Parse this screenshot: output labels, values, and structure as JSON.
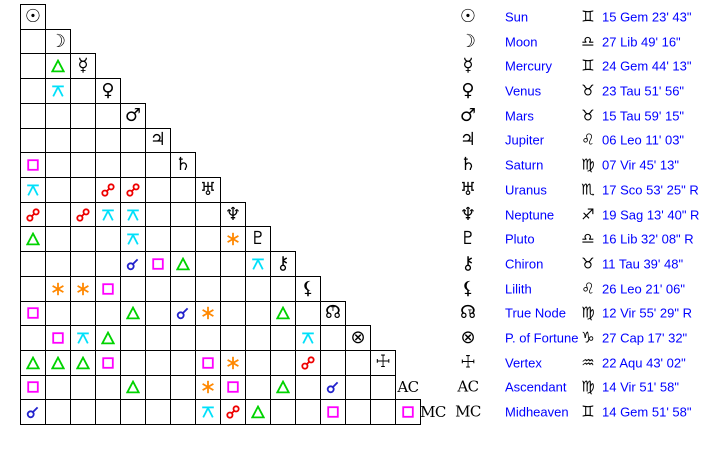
{
  "aspect_types": {
    "conjunction": {
      "color": "#2222cc"
    },
    "opposition": {
      "color": "#ee0000"
    },
    "square": {
      "color": "#ff00ff"
    },
    "trine": {
      "color": "#00d300"
    },
    "sextile": {
      "color": "#ff8800"
    },
    "quincunx": {
      "color": "#00e0fa"
    }
  },
  "colors": {
    "grid_line": "#000000",
    "glyph_text": "#000000",
    "table_text": "#0000ff",
    "background": "#ffffff"
  },
  "table": {
    "planets": [
      {
        "id": "sun",
        "glyph": "☉",
        "glyph_style": "symbol",
        "name": "Sun",
        "sign": "♊",
        "position": "15 Gem 23' 43\""
      },
      {
        "id": "moon",
        "glyph": "☽",
        "glyph_style": "symbol",
        "name": "Moon",
        "sign": "♎",
        "position": "27 Lib 49' 16\""
      },
      {
        "id": "mercury",
        "glyph": "☿",
        "glyph_style": "symbol",
        "name": "Mercury",
        "sign": "♊",
        "position": "24 Gem 44' 13\""
      },
      {
        "id": "venus",
        "glyph": "♀",
        "glyph_style": "symbol",
        "name": "Venus",
        "sign": "♉",
        "position": "23 Tau 51' 56\""
      },
      {
        "id": "mars",
        "glyph": "♂",
        "glyph_style": "symbol",
        "name": "Mars",
        "sign": "♉",
        "position": "15 Tau 59' 15\""
      },
      {
        "id": "jupiter",
        "glyph": "♃",
        "glyph_style": "symbol",
        "name": "Jupiter",
        "sign": "♌",
        "position": "06 Leo 11' 03\""
      },
      {
        "id": "saturn",
        "glyph": "♄",
        "glyph_style": "symbol",
        "name": "Saturn",
        "sign": "♍",
        "position": "07 Vir 45' 13\""
      },
      {
        "id": "uranus",
        "glyph": "♅",
        "glyph_style": "symbol",
        "name": "Uranus",
        "sign": "♏",
        "position": "17 Sco 53' 25\" R"
      },
      {
        "id": "neptune",
        "glyph": "♆",
        "glyph_style": "symbol",
        "name": "Neptune",
        "sign": "♐",
        "position": "19 Sag 13' 40\" R"
      },
      {
        "id": "pluto",
        "glyph": "♇",
        "glyph_style": "symbol",
        "name": "Pluto",
        "sign": "♎",
        "position": "16 Lib 32' 08\" R"
      },
      {
        "id": "chiron",
        "glyph": "⚷",
        "glyph_style": "symbol",
        "name": "Chiron",
        "sign": "♉",
        "position": "11 Tau 39' 48\""
      },
      {
        "id": "lilith",
        "glyph": "⚸",
        "glyph_style": "symbol",
        "name": "Lilith",
        "sign": "♌",
        "position": "26 Leo 21' 06\""
      },
      {
        "id": "true-node",
        "glyph": "☊",
        "glyph_style": "symbol",
        "name": "True Node",
        "sign": "♍",
        "position": "12 Vir 55' 29\" R",
        "badge": "T"
      },
      {
        "id": "fortune",
        "glyph": "⊗",
        "glyph_style": "symbol",
        "name": "P. of Fortune",
        "sign": "♑",
        "position": "27 Cap 17' 32\""
      },
      {
        "id": "vertex",
        "glyph": "☩",
        "glyph_style": "cross",
        "name": "Vertex",
        "sign": "♒",
        "position": "22 Aqu 43' 02\""
      },
      {
        "id": "ascendant",
        "glyph": "AC",
        "glyph_style": "text",
        "name": "Ascendant",
        "sign": "♍",
        "position": "14 Vir 51' 58\""
      },
      {
        "id": "midheaven",
        "glyph": "MC",
        "glyph_style": "text",
        "name": "Midheaven",
        "sign": "♊",
        "position": "14 Gem 51' 58\""
      }
    ]
  },
  "grid": {
    "rows": 17,
    "aspects": [
      {
        "row": 2,
        "col": 1,
        "type": "trine"
      },
      {
        "row": 3,
        "col": 1,
        "type": "quincunx"
      },
      {
        "row": 6,
        "col": 0,
        "type": "square"
      },
      {
        "row": 7,
        "col": 0,
        "type": "quincunx"
      },
      {
        "row": 7,
        "col": 3,
        "type": "opposition"
      },
      {
        "row": 7,
        "col": 4,
        "type": "opposition"
      },
      {
        "row": 8,
        "col": 0,
        "type": "opposition"
      },
      {
        "row": 8,
        "col": 2,
        "type": "opposition"
      },
      {
        "row": 8,
        "col": 3,
        "type": "quincunx"
      },
      {
        "row": 8,
        "col": 4,
        "type": "quincunx"
      },
      {
        "row": 9,
        "col": 0,
        "type": "trine"
      },
      {
        "row": 9,
        "col": 4,
        "type": "quincunx"
      },
      {
        "row": 9,
        "col": 8,
        "type": "sextile"
      },
      {
        "row": 10,
        "col": 4,
        "type": "conjunction"
      },
      {
        "row": 10,
        "col": 5,
        "type": "square"
      },
      {
        "row": 10,
        "col": 6,
        "type": "trine"
      },
      {
        "row": 10,
        "col": 9,
        "type": "quincunx"
      },
      {
        "row": 11,
        "col": 1,
        "type": "sextile"
      },
      {
        "row": 11,
        "col": 2,
        "type": "sextile"
      },
      {
        "row": 11,
        "col": 3,
        "type": "square"
      },
      {
        "row": 12,
        "col": 0,
        "type": "square"
      },
      {
        "row": 12,
        "col": 4,
        "type": "trine"
      },
      {
        "row": 12,
        "col": 6,
        "type": "conjunction"
      },
      {
        "row": 12,
        "col": 7,
        "type": "sextile"
      },
      {
        "row": 12,
        "col": 10,
        "type": "trine"
      },
      {
        "row": 13,
        "col": 1,
        "type": "square"
      },
      {
        "row": 13,
        "col": 2,
        "type": "quincunx"
      },
      {
        "row": 13,
        "col": 3,
        "type": "trine"
      },
      {
        "row": 13,
        "col": 11,
        "type": "quincunx"
      },
      {
        "row": 14,
        "col": 0,
        "type": "trine"
      },
      {
        "row": 14,
        "col": 1,
        "type": "trine"
      },
      {
        "row": 14,
        "col": 2,
        "type": "trine"
      },
      {
        "row": 14,
        "col": 3,
        "type": "square"
      },
      {
        "row": 14,
        "col": 7,
        "type": "square"
      },
      {
        "row": 14,
        "col": 8,
        "type": "sextile"
      },
      {
        "row": 14,
        "col": 11,
        "type": "opposition"
      },
      {
        "row": 15,
        "col": 0,
        "type": "square"
      },
      {
        "row": 15,
        "col": 4,
        "type": "trine"
      },
      {
        "row": 15,
        "col": 7,
        "type": "sextile"
      },
      {
        "row": 15,
        "col": 8,
        "type": "square"
      },
      {
        "row": 15,
        "col": 10,
        "type": "trine"
      },
      {
        "row": 15,
        "col": 12,
        "type": "conjunction"
      },
      {
        "row": 16,
        "col": 0,
        "type": "conjunction"
      },
      {
        "row": 16,
        "col": 7,
        "type": "quincunx"
      },
      {
        "row": 16,
        "col": 8,
        "type": "opposition"
      },
      {
        "row": 16,
        "col": 9,
        "type": "trine"
      },
      {
        "row": 16,
        "col": 12,
        "type": "square"
      },
      {
        "row": 16,
        "col": 15,
        "type": "square"
      }
    ]
  }
}
